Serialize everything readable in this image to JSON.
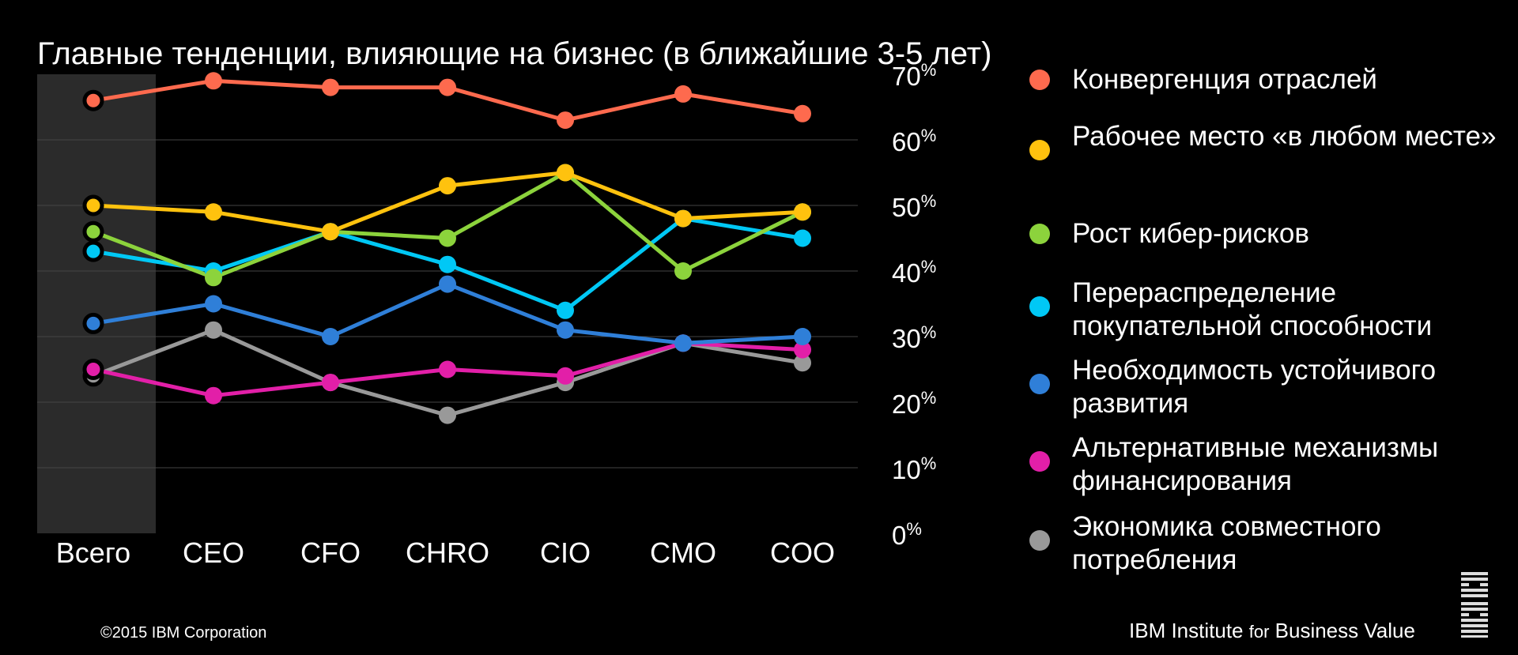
{
  "title": "Главные тенденции, влияющие на бизнес (в ближайшие 3-5 лет)",
  "footer": {
    "copyright": "©2015 IBM Corporation",
    "brand_part1": "IBM Institute ",
    "brand_part2": "for",
    "brand_part3": " Business Value",
    "logo_text": "IBM"
  },
  "colors": {
    "background": "#000000",
    "highlight_band": "#2b2b2b",
    "grid": "#444444"
  },
  "chart_data": {
    "type": "line",
    "categories": [
      "Всего",
      "CEO",
      "CFO",
      "CHRO",
      "CIO",
      "CMO",
      "COO"
    ],
    "highlighted_category": "Всего",
    "ylim": [
      0,
      70
    ],
    "yticks": [
      0,
      10,
      20,
      30,
      40,
      50,
      60,
      70
    ],
    "ytick_labels": [
      "0",
      "10",
      "20",
      "30",
      "40",
      "50",
      "60",
      "70"
    ],
    "ytick_unit": "%",
    "y_axis_side": "right",
    "grid": true,
    "legend_position": "right",
    "series": [
      {
        "name": "Конвергенция отраслей",
        "color": "#fe6a4e",
        "values": [
          66,
          69,
          68,
          68,
          63,
          67,
          64
        ]
      },
      {
        "name": "Рабочее место «в любом месте»",
        "color": "#ffc20e",
        "values": [
          50,
          49,
          46,
          53,
          55,
          48,
          49
        ]
      },
      {
        "name": "Рост кибер-рисков",
        "color": "#8cd33c",
        "values": [
          46,
          39,
          46,
          45,
          55,
          40,
          49
        ]
      },
      {
        "name": "Перераспределение покупательной способности",
        "color": "#00c8f5",
        "values": [
          43,
          40,
          46,
          41,
          34,
          48,
          45
        ]
      },
      {
        "name": "Необходимость устойчивого развития",
        "color": "#2f7fd8",
        "values": [
          32,
          35,
          30,
          38,
          31,
          29,
          30
        ]
      },
      {
        "name": "Альтернативные механизмы финансирования",
        "color": "#e21fa8",
        "values": [
          25,
          21,
          23,
          25,
          24,
          29,
          28
        ]
      },
      {
        "name": "Экономика совместного потребления",
        "color": "#999999",
        "values": [
          24,
          31,
          23,
          18,
          23,
          29,
          26
        ]
      }
    ]
  }
}
